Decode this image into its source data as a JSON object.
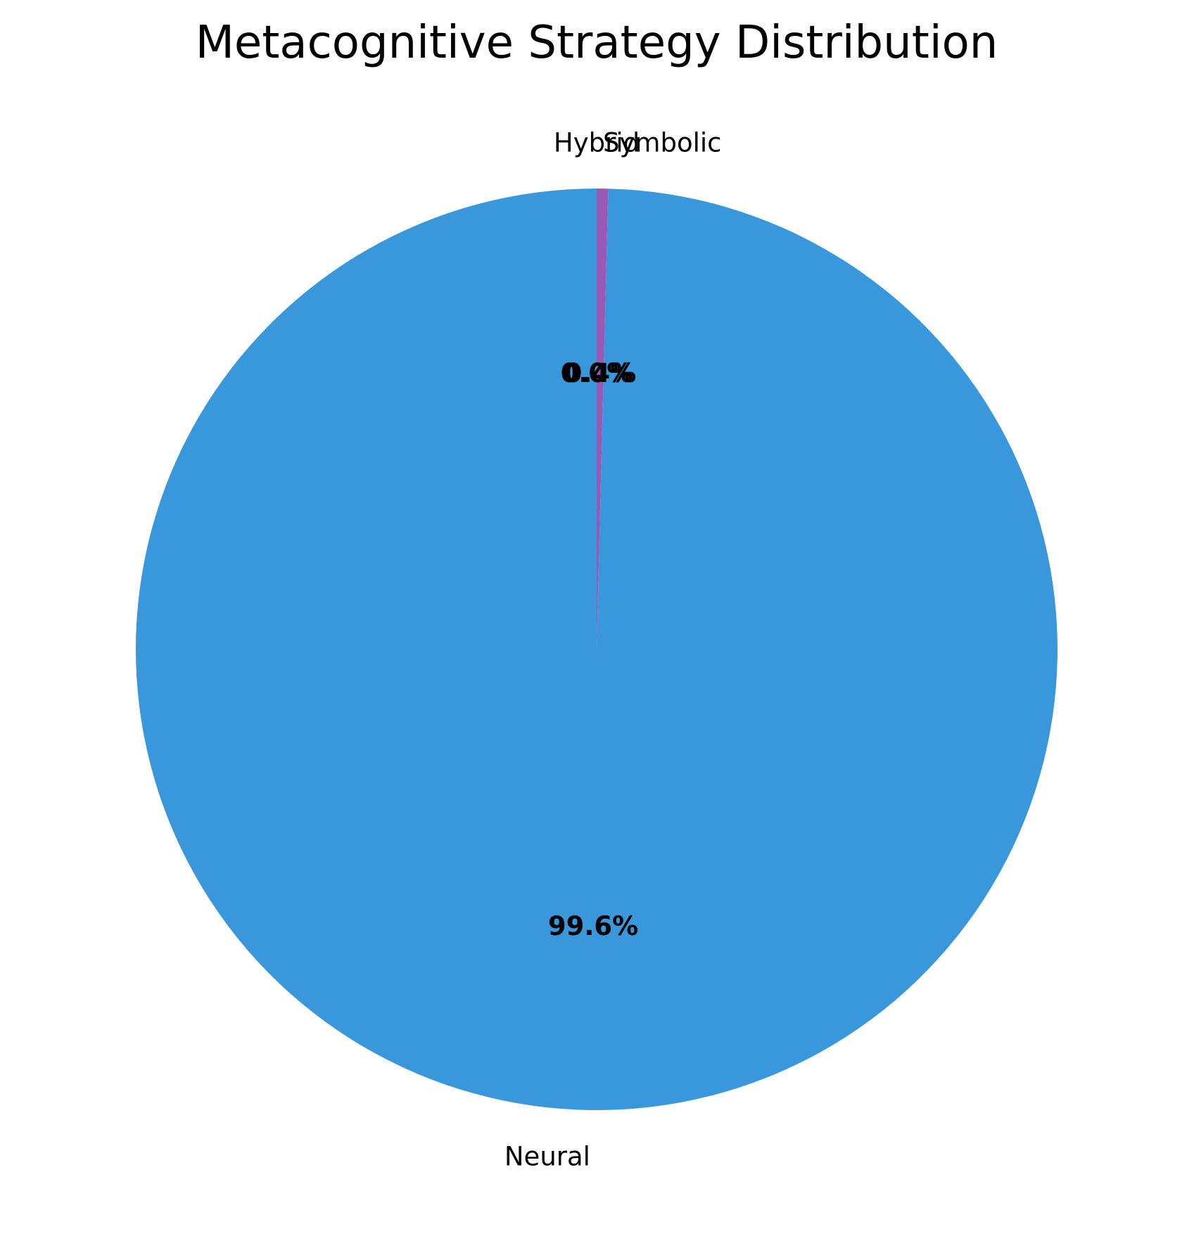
{
  "chart_data": {
    "type": "pie",
    "title": "Metacognitive Strategy Distribution",
    "start_angle_deg": 90,
    "direction": "counterclockwise",
    "slices": [
      {
        "label": "Neural",
        "value": 99.6,
        "pct_label": "99.6%",
        "color": "#3898db"
      },
      {
        "label": "Symbolic",
        "value": 0.4,
        "pct_label": "0.4%",
        "color": "#9b59b6"
      },
      {
        "label": "Hybrid",
        "value": 0.0,
        "pct_label": "0.0%",
        "color": "#e74c3c"
      }
    ]
  }
}
